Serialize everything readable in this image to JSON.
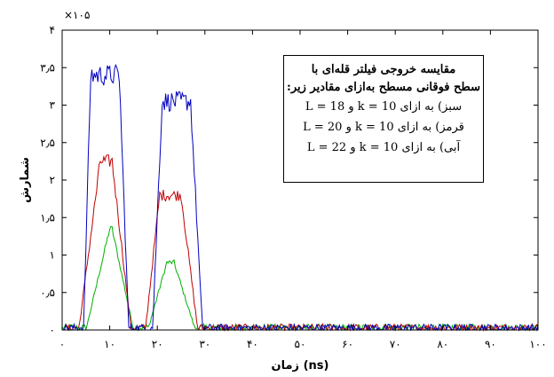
{
  "chart_data": {
    "type": "line",
    "exponent_label": "×۱۰۵",
    "xlabel": "زمان (ns)",
    "ylabel": "شمارش",
    "xlim": [
      0,
      100
    ],
    "ylim": [
      0,
      4
    ],
    "x_ticks": [
      0,
      10,
      20,
      30,
      40,
      50,
      60,
      70,
      80,
      90,
      100
    ],
    "x_tick_labels": [
      "۰",
      "۱۰",
      "۲۰",
      "۳۰",
      "۴۰",
      "۵۰",
      "۶۰",
      "۷۰",
      "۸۰",
      "۹۰",
      "۱۰۰"
    ],
    "y_ticks": [
      0,
      0.5,
      1,
      1.5,
      2,
      2.5,
      3,
      3.5,
      4
    ],
    "y_tick_labels": [
      "۰",
      "۰٫۵",
      "۱",
      "۱٫۵",
      "۲",
      "۲٫۵",
      "۳",
      "۳٫۵",
      "۴"
    ],
    "legend": {
      "placement": "top-right",
      "title_lines": [
        "مقایسه خروجی فیلتر قله‌ای با",
        "سطح فوقانی مسطح به‌ازای مقادیر زیر:"
      ],
      "entries": [
        "سبز) به ازای k = 10 و L = 18",
        "قرمز) به ازای k = 10 و L = 20",
        "آبی) به ازای k = 10 و L = 22"
      ]
    },
    "series": [
      {
        "color": "#00b000",
        "pulses": [
          {
            "rise_start": 5,
            "plateau_start": 10,
            "plateau_end": 10.5,
            "fall_end": 15,
            "level": 1.35
          },
          {
            "rise_start": 18,
            "plateau_start": 22,
            "plateau_end": 23.5,
            "fall_end": 28,
            "level": 0.9
          }
        ],
        "noise": 0.04
      },
      {
        "color": "#c00000",
        "pulses": [
          {
            "rise_start": 3.5,
            "plateau_start": 8,
            "plateau_end": 10.5,
            "fall_end": 14.5,
            "level": 2.25
          },
          {
            "rise_start": 17.5,
            "plateau_start": 20.5,
            "plateau_end": 25,
            "fall_end": 28.5,
            "level": 1.8
          }
        ],
        "noise": 0.06
      },
      {
        "color": "#0000c0",
        "pulses": [
          {
            "rise_start": 4.5,
            "plateau_start": 6,
            "plateau_end": 12,
            "fall_end": 14,
            "level": 3.4
          },
          {
            "rise_start": 19,
            "plateau_start": 21,
            "plateau_end": 27,
            "fall_end": 29.5,
            "level": 3.05
          }
        ],
        "noise": 0.07
      }
    ],
    "baseline_noise": 0.05
  }
}
